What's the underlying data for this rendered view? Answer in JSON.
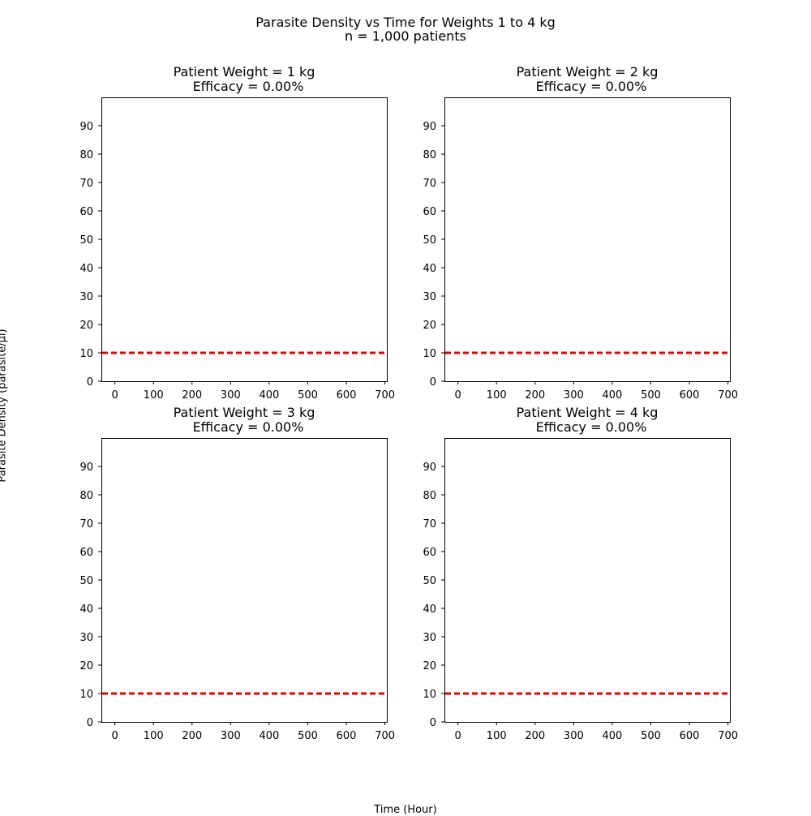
{
  "figure": {
    "title_line1": "Parasite Density vs Time for Weights 1 to 4 kg",
    "title_line2": "n = 1,000 patients",
    "ylabel": "Parasite Density (parasite/μl)",
    "xlabel": "Time (Hour)"
  },
  "chart_data": [
    {
      "type": "line",
      "title": "Patient Weight = 1 kg\nEfficacy = 0.00%",
      "title_line1": "Patient Weight = 1 kg",
      "title_line2": "Efficacy = 0.00%",
      "xlim": [
        -35,
        705
      ],
      "ylim": [
        0,
        100
      ],
      "xticks": [
        0,
        100,
        200,
        300,
        400,
        500,
        600,
        700
      ],
      "yticks": [
        0,
        10,
        20,
        30,
        40,
        50,
        60,
        70,
        80,
        90
      ],
      "series": [],
      "reference_lines": [
        {
          "orientation": "horizontal",
          "y": 10,
          "color": "#e00000",
          "style": "dashed"
        }
      ]
    },
    {
      "type": "line",
      "title": "Patient Weight = 2 kg\nEfficacy = 0.00%",
      "title_line1": "Patient Weight = 2 kg",
      "title_line2": "Efficacy = 0.00%",
      "xlim": [
        -35,
        705
      ],
      "ylim": [
        0,
        100
      ],
      "xticks": [
        0,
        100,
        200,
        300,
        400,
        500,
        600,
        700
      ],
      "yticks": [
        0,
        10,
        20,
        30,
        40,
        50,
        60,
        70,
        80,
        90
      ],
      "series": [],
      "reference_lines": [
        {
          "orientation": "horizontal",
          "y": 10,
          "color": "#e00000",
          "style": "dashed"
        }
      ]
    },
    {
      "type": "line",
      "title": "Patient Weight = 3 kg\nEfficacy = 0.00%",
      "title_line1": "Patient Weight = 3 kg",
      "title_line2": "Efficacy = 0.00%",
      "xlim": [
        -35,
        705
      ],
      "ylim": [
        0,
        100
      ],
      "xticks": [
        0,
        100,
        200,
        300,
        400,
        500,
        600,
        700
      ],
      "yticks": [
        0,
        10,
        20,
        30,
        40,
        50,
        60,
        70,
        80,
        90
      ],
      "series": [],
      "reference_lines": [
        {
          "orientation": "horizontal",
          "y": 10,
          "color": "#e00000",
          "style": "dashed"
        }
      ]
    },
    {
      "type": "line",
      "title": "Patient Weight = 4 kg\nEfficacy = 0.00%",
      "title_line1": "Patient Weight = 4 kg",
      "title_line2": "Efficacy = 0.00%",
      "xlim": [
        -35,
        705
      ],
      "ylim": [
        0,
        100
      ],
      "xticks": [
        0,
        100,
        200,
        300,
        400,
        500,
        600,
        700
      ],
      "yticks": [
        0,
        10,
        20,
        30,
        40,
        50,
        60,
        70,
        80,
        90
      ],
      "series": [],
      "reference_lines": [
        {
          "orientation": "horizontal",
          "y": 10,
          "color": "#e00000",
          "style": "dashed"
        }
      ]
    }
  ]
}
